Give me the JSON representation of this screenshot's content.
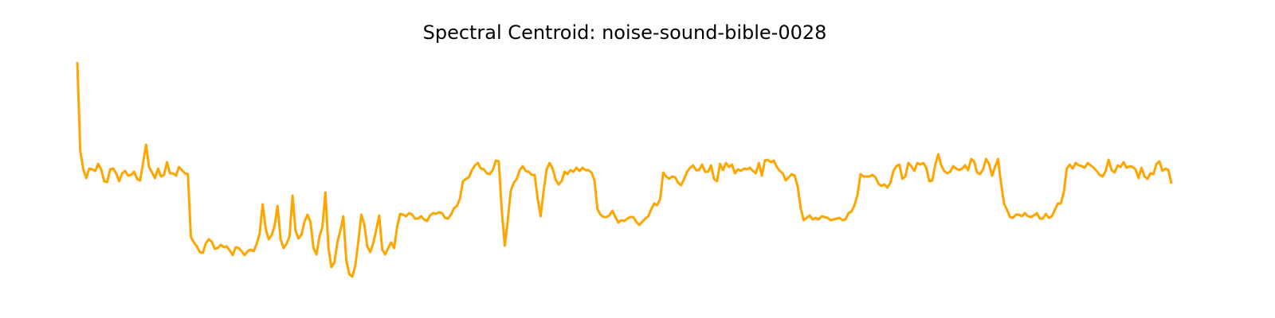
{
  "chart_data": {
    "type": "line",
    "title": "Spectral Centroid: noise-sound-bible-0028",
    "color": "#ffa500",
    "values": [
      282,
      170,
      147,
      136,
      148,
      147,
      145,
      154,
      147,
      132,
      131,
      147,
      148,
      142,
      132,
      142,
      145,
      139,
      140,
      144,
      135,
      133,
      155,
      178,
      150,
      143,
      136,
      148,
      138,
      140,
      156,
      142,
      142,
      139,
      150,
      146,
      142,
      141,
      62,
      55,
      50,
      43,
      42,
      54,
      59,
      56,
      47,
      48,
      52,
      49,
      50,
      45,
      39,
      49,
      48,
      44,
      39,
      44,
      46,
      44,
      53,
      66,
      103,
      73,
      59,
      64,
      76,
      101,
      59,
      48,
      53,
      63,
      114,
      70,
      60,
      65,
      81,
      90,
      81,
      48,
      40,
      62,
      75,
      118,
      49,
      24,
      30,
      55,
      70,
      88,
      32,
      15,
      12,
      26,
      56,
      90,
      78,
      50,
      43,
      54,
      71,
      89,
      46,
      40,
      48,
      55,
      48,
      75,
      91,
      90,
      88,
      92,
      90,
      85,
      85,
      88,
      84,
      82,
      89,
      92,
      91,
      93,
      92,
      86,
      85,
      90,
      98,
      101,
      110,
      132,
      135,
      137,
      146,
      152,
      155,
      148,
      147,
      142,
      141,
      146,
      158,
      157,
      95,
      51,
      83,
      120,
      130,
      135,
      146,
      151,
      145,
      144,
      140,
      140,
      110,
      88,
      120,
      147,
      155,
      148,
      134,
      128,
      132,
      144,
      141,
      146,
      144,
      149,
      145,
      149,
      146,
      146,
      143,
      133,
      97,
      90,
      87,
      87,
      89,
      95,
      87,
      80,
      83,
      82,
      85,
      87,
      87,
      81,
      77,
      81,
      85,
      88,
      97,
      104,
      102,
      110,
      143,
      138,
      135,
      138,
      137,
      130,
      127,
      135,
      144,
      149,
      152,
      146,
      146,
      153,
      144,
      144,
      152,
      135,
      132,
      154,
      146,
      155,
      150,
      153,
      142,
      147,
      145,
      148,
      147,
      149,
      145,
      142,
      155,
      139,
      158,
      159,
      156,
      158,
      150,
      145,
      142,
      133,
      137,
      141,
      139,
      125,
      98,
      83,
      86,
      89,
      84,
      86,
      84,
      88,
      87,
      86,
      83,
      84,
      85,
      86,
      83,
      84,
      92,
      94,
      102,
      115,
      141,
      138,
      138,
      138,
      140,
      137,
      129,
      126,
      128,
      124,
      130,
      145,
      151,
      153,
      135,
      138,
      155,
      151,
      145,
      155,
      153,
      155,
      149,
      132,
      133,
      153,
      166,
      152,
      145,
      142,
      144,
      151,
      148,
      146,
      148,
      152,
      146,
      160,
      157,
      143,
      141,
      147,
      160,
      154,
      139,
      150,
      160,
      130,
      104,
      96,
      87,
      86,
      90,
      90,
      88,
      92,
      88,
      87,
      89,
      92,
      85,
      85,
      91,
      86,
      88,
      96,
      104,
      104,
      118,
      148,
      153,
      148,
      155,
      152,
      151,
      149,
      155,
      152,
      149,
      145,
      140,
      138,
      145,
      159,
      146,
      143,
      152,
      150,
      156,
      149,
      151,
      150,
      147,
      136,
      149,
      138,
      135,
      142,
      141,
      154,
      157,
      145,
      148,
      146,
      129
    ]
  }
}
